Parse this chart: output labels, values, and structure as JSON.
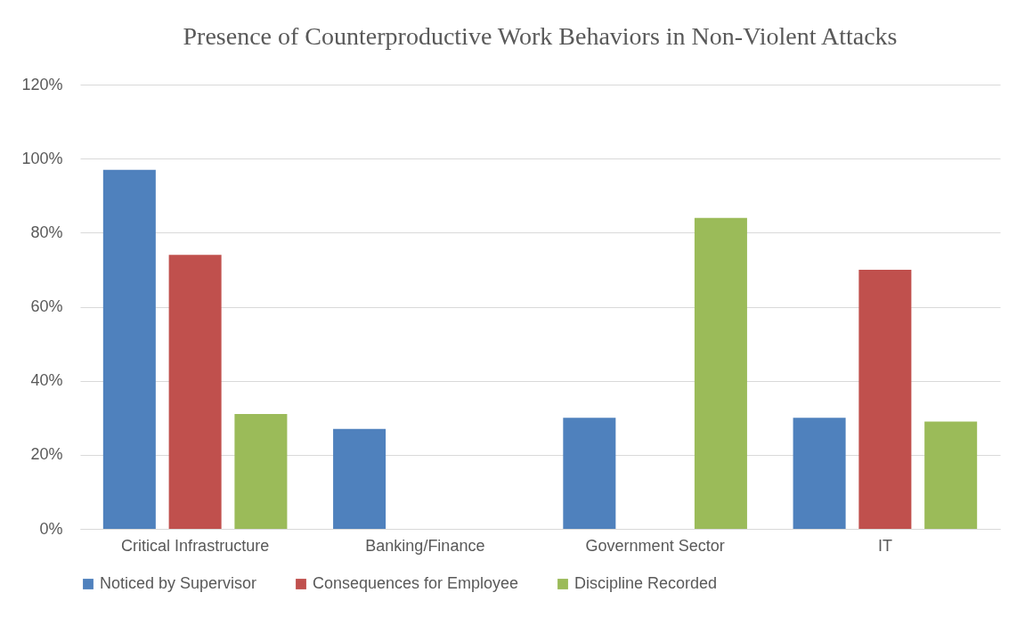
{
  "chart_data": {
    "type": "bar",
    "title": "Presence of Counterproductive Work Behaviors in Non-Violent Attacks",
    "categories": [
      "Critical Infrastructure",
      "Banking/Finance",
      "Government Sector",
      "IT"
    ],
    "series": [
      {
        "name": "Noticed by Supervisor",
        "color": "#4f81bd",
        "values": [
          97,
          27,
          30,
          30
        ]
      },
      {
        "name": "Consequences for Employee",
        "color": "#c0504d",
        "values": [
          74,
          null,
          null,
          70
        ]
      },
      {
        "name": "Discipline Recorded",
        "color": "#9bbb59",
        "values": [
          31,
          null,
          84,
          29
        ]
      }
    ],
    "ylim": [
      0,
      120
    ],
    "yticks": [
      {
        "value": 0,
        "label": "0%"
      },
      {
        "value": 20,
        "label": "20%"
      },
      {
        "value": 40,
        "label": "40%"
      },
      {
        "value": 60,
        "label": "60%"
      },
      {
        "value": 80,
        "label": "80%"
      },
      {
        "value": 100,
        "label": "100%"
      },
      {
        "value": 120,
        "label": "120%"
      }
    ],
    "grid": "y",
    "legend": "bottom"
  }
}
